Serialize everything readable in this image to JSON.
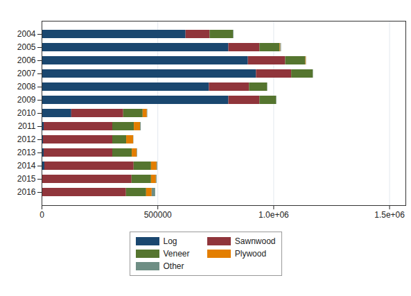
{
  "chart_data": {
    "type": "bar",
    "orientation": "horizontal",
    "stacked": true,
    "grid": true,
    "legend": "bottom",
    "categories": [
      "2004",
      "2005",
      "2006",
      "2007",
      "2008",
      "2009",
      "2010",
      "2011",
      "2012",
      "2013",
      "2014",
      "2015",
      "2016"
    ],
    "series": [
      {
        "name": "Log",
        "color": "#1a476f",
        "values": [
          621000,
          806000,
          890000,
          925000,
          722000,
          806000,
          128000,
          9000,
          6000,
          9000,
          12000,
          3000,
          3000
        ]
      },
      {
        "name": "Sawnwood",
        "color": "#90353b",
        "values": [
          104000,
          134000,
          161000,
          152000,
          173000,
          134000,
          224000,
          296000,
          299000,
          296000,
          385000,
          385000,
          361000
        ]
      },
      {
        "name": "Veneer",
        "color": "#55752f",
        "values": [
          101000,
          87000,
          87000,
          93000,
          78000,
          72000,
          84000,
          93000,
          60000,
          84000,
          75000,
          84000,
          87000
        ]
      },
      {
        "name": "Plywood",
        "color": "#e37e00",
        "values": [
          0,
          3000,
          2000,
          0,
          0,
          0,
          18000,
          27000,
          30000,
          21000,
          24000,
          21000,
          24000
        ]
      },
      {
        "name": "Other",
        "color": "#6e8e84",
        "values": [
          2000,
          3000,
          1000,
          1000,
          1000,
          1000,
          2000,
          3000,
          1000,
          2000,
          3000,
          3000,
          15000
        ]
      }
    ],
    "xlim": [
      0,
      1570000
    ],
    "xticks": [
      0,
      500000,
      {
        "value": 1000000,
        "label": "1.0e+06"
      },
      {
        "value": 1500000,
        "label": "1.5e+06"
      }
    ]
  }
}
